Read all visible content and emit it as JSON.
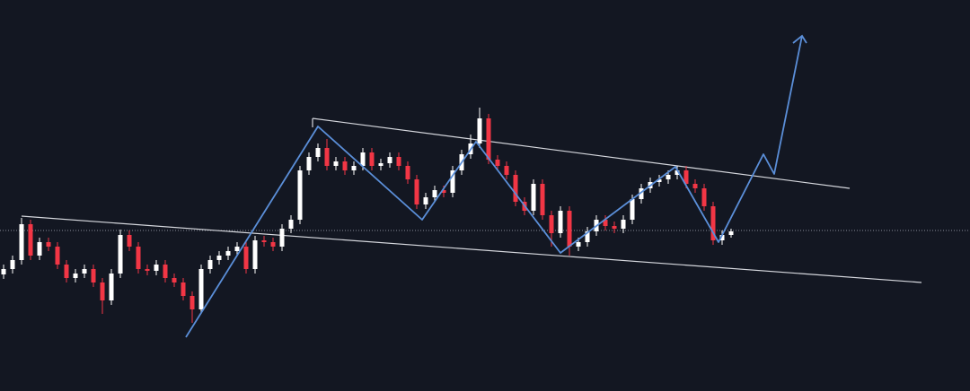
{
  "chart_data": {
    "type": "candlestick",
    "categories": [
      null,
      null,
      null,
      null,
      null,
      null,
      null,
      null,
      null,
      null,
      null,
      null,
      null,
      null,
      null,
      null,
      null,
      null,
      null,
      null,
      null,
      null,
      null,
      null,
      null,
      null,
      null,
      null,
      null,
      null,
      null,
      null,
      null,
      null,
      null,
      null,
      null,
      null,
      null,
      null,
      null,
      null,
      null,
      null,
      null,
      null,
      null,
      null,
      null,
      null,
      null,
      null,
      null,
      null,
      null,
      null,
      null,
      null,
      null,
      null,
      null,
      null,
      null,
      null,
      null,
      null,
      null,
      null,
      null,
      null,
      null,
      null,
      null,
      null,
      null,
      null,
      null,
      null,
      null,
      null,
      null,
      null
    ],
    "open": [
      130,
      136,
      146,
      186,
      151,
      166,
      161,
      141,
      126,
      131,
      136,
      121,
      101,
      131,
      174,
      161,
      136,
      134,
      141,
      126,
      121,
      106,
      91,
      136,
      146,
      151,
      156,
      161,
      136,
      168,
      166,
      161,
      181,
      191,
      246,
      261,
      271,
      251,
      256,
      246,
      251,
      266,
      251,
      254,
      261,
      251,
      236,
      208,
      216,
      224,
      221,
      246,
      264,
      276,
      304,
      258,
      251,
      241,
      211,
      201,
      231,
      196,
      176,
      201,
      161,
      166,
      178,
      191,
      184,
      181,
      191,
      214,
      226,
      233,
      236,
      241,
      246,
      231,
      226,
      206,
      168,
      174
    ],
    "high": [
      141,
      151,
      193,
      191,
      171,
      171,
      166,
      146,
      136,
      141,
      141,
      126,
      136,
      180,
      179,
      166,
      141,
      146,
      146,
      131,
      126,
      111,
      141,
      151,
      156,
      161,
      166,
      166,
      173,
      173,
      171,
      186,
      196,
      251,
      266,
      276,
      281,
      261,
      261,
      256,
      271,
      271,
      259,
      266,
      266,
      256,
      241,
      221,
      229,
      229,
      251,
      269,
      286,
      316,
      309,
      263,
      256,
      246,
      216,
      236,
      236,
      201,
      206,
      206,
      171,
      183,
      196,
      196,
      189,
      196,
      219,
      231,
      238,
      241,
      246,
      251,
      251,
      236,
      231,
      211,
      179,
      181
    ],
    "low": [
      125,
      131,
      141,
      146,
      146,
      156,
      136,
      121,
      121,
      126,
      116,
      86,
      96,
      126,
      156,
      131,
      129,
      129,
      121,
      116,
      101,
      76,
      86,
      131,
      141,
      146,
      151,
      131,
      131,
      161,
      156,
      156,
      176,
      186,
      241,
      256,
      246,
      246,
      241,
      241,
      246,
      246,
      246,
      249,
      246,
      231,
      203,
      203,
      211,
      216,
      216,
      241,
      259,
      271,
      253,
      246,
      236,
      206,
      196,
      196,
      191,
      161,
      171,
      151,
      156,
      161,
      173,
      179,
      176,
      176,
      186,
      209,
      221,
      228,
      231,
      236,
      226,
      221,
      201,
      163,
      163,
      171
    ],
    "close": [
      136,
      146,
      186,
      151,
      166,
      161,
      141,
      126,
      131,
      136,
      121,
      101,
      131,
      174,
      161,
      136,
      134,
      141,
      126,
      121,
      106,
      91,
      136,
      146,
      151,
      156,
      161,
      136,
      168,
      166,
      161,
      181,
      191,
      246,
      261,
      271,
      251,
      256,
      246,
      251,
      266,
      251,
      254,
      261,
      251,
      236,
      208,
      216,
      224,
      221,
      246,
      264,
      276,
      304,
      258,
      251,
      241,
      211,
      201,
      231,
      196,
      176,
      201,
      161,
      166,
      178,
      191,
      184,
      181,
      191,
      214,
      226,
      233,
      236,
      241,
      246,
      231,
      226,
      206,
      168,
      174,
      178
    ],
    "up_color": "#ffffff",
    "down_color": "#f23645",
    "ylim": [
      0,
      436
    ]
  }
}
